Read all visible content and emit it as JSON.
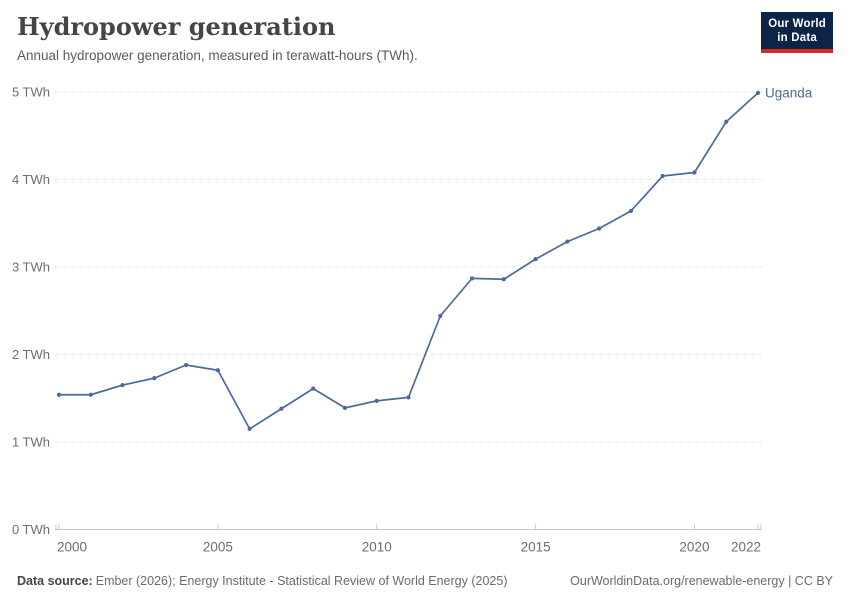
{
  "header": {
    "title": "Hydropower generation",
    "subtitle": "Annual hydropower generation, measured in terawatt-hours (TWh)."
  },
  "logo": {
    "line1": "Our World",
    "line2": "in Data",
    "bg_color": "#0C2448",
    "accent_color": "#D42B21"
  },
  "footer": {
    "source_label": "Data source:",
    "source_text": "Ember (2026); Energy Institute - Statistical Review of World Energy (2025)",
    "link": "OurWorldinData.org/renewable-energy | CC BY"
  },
  "chart_data": {
    "type": "line",
    "title": "Hydropower generation",
    "entity": "Uganda",
    "unit": "TWh",
    "x": [
      2000,
      2001,
      2002,
      2003,
      2004,
      2005,
      2006,
      2007,
      2008,
      2009,
      2010,
      2011,
      2012,
      2013,
      2014,
      2015,
      2016,
      2017,
      2018,
      2019,
      2020,
      2021,
      2022
    ],
    "values": [
      1.54,
      1.54,
      1.65,
      1.73,
      1.88,
      1.82,
      1.15,
      1.38,
      1.61,
      1.39,
      1.47,
      1.51,
      2.44,
      2.87,
      2.86,
      3.09,
      3.29,
      3.44,
      3.64,
      4.04,
      4.08,
      4.66,
      4.99
    ],
    "ylim": [
      0,
      5
    ],
    "yticks": [
      0,
      1,
      2,
      3,
      4,
      5
    ],
    "ytick_suffix": " TWh",
    "xticks": [
      2000,
      2005,
      2010,
      2015,
      2020,
      2022
    ],
    "grid": true,
    "legend_position": "end-of-line-label",
    "line_color": "#4C6A9C",
    "grid_color": "#e6e6e6",
    "axis_line_color": "#c8c8c8",
    "axis_text_color": "#6e6e6e"
  }
}
